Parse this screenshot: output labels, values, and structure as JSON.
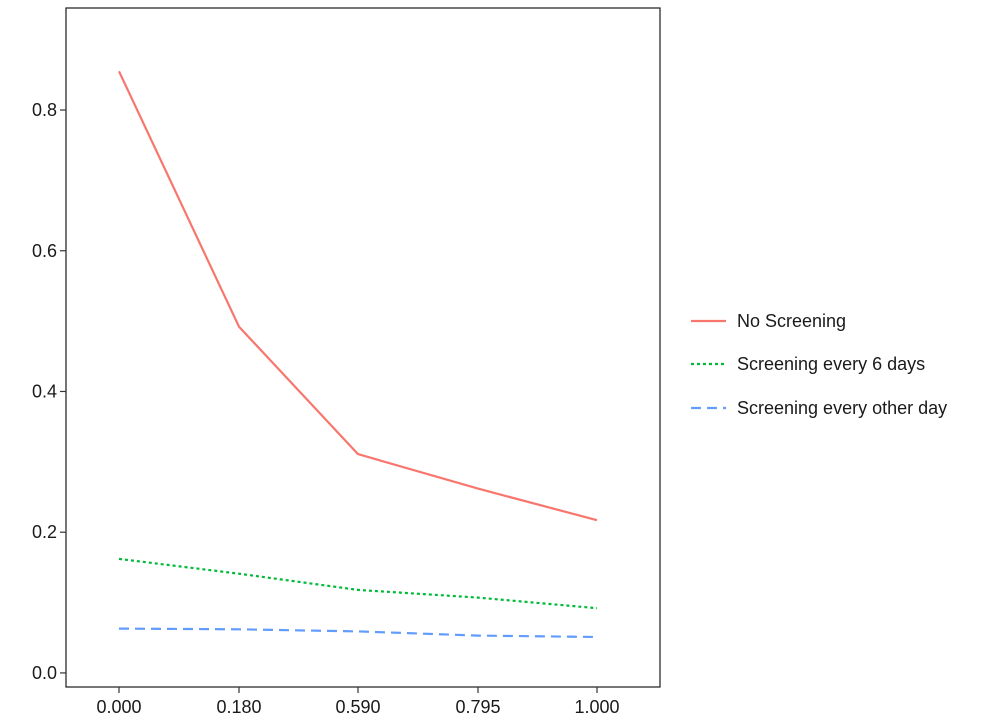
{
  "chart_data": {
    "type": "line",
    "title": "",
    "xlabel": "",
    "ylabel": "",
    "x_tick_labels": [
      "0.000",
      "0.180",
      "0.590",
      "0.795",
      "1.000"
    ],
    "y_ticks": [
      0.0,
      0.2,
      0.4,
      0.6,
      0.8
    ],
    "y_tick_labels": [
      "0.0",
      "0.2",
      "0.4",
      "0.6",
      "0.8"
    ],
    "ylim": [
      -0.02,
      0.945
    ],
    "grid": false,
    "legend_position": "right",
    "series": [
      {
        "name": "No Screening",
        "color": "#F8766D",
        "dash": "solid",
        "values": [
          0.855,
          0.492,
          0.311,
          0.262,
          0.217
        ]
      },
      {
        "name": "Screening every 6 days",
        "color": "#00BA38",
        "dash": "dotted",
        "values": [
          0.162,
          0.141,
          0.118,
          0.107,
          0.092
        ]
      },
      {
        "name": "Screening every other day",
        "color": "#619CFF",
        "dash": "dashed",
        "values": [
          0.063,
          0.062,
          0.059,
          0.053,
          0.051
        ]
      }
    ]
  }
}
